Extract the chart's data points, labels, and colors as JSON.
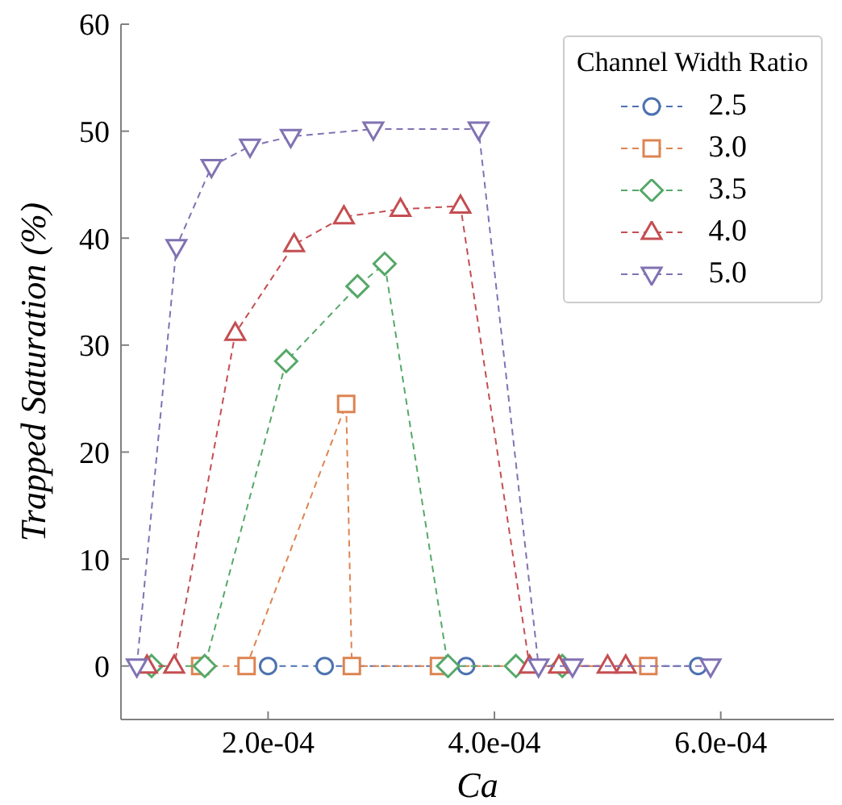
{
  "chart_data": {
    "type": "line",
    "xlabel": "Ca",
    "ylabel": "Trapped Saturation (%)",
    "legend_title": "Channel Width Ratio",
    "legend": "top right",
    "grid": false,
    "line_style": "dashed",
    "xlim": [
      7e-05,
      0.0007
    ],
    "xticks": [
      {
        "value": 0.0002,
        "label": "2.0e-04"
      },
      {
        "value": 0.0004,
        "label": "4.0e-04"
      },
      {
        "value": 0.0006,
        "label": "6.0e-04"
      }
    ],
    "ylim": [
      -5,
      60
    ],
    "yticks": [
      0,
      10,
      20,
      30,
      40,
      50,
      60
    ],
    "series": [
      {
        "name": "2.5",
        "color": "#4c72b0",
        "marker": "circle",
        "x": [
          0.0002,
          0.00025,
          0.000375,
          0.00058
        ],
        "values": [
          0,
          0,
          0,
          0
        ]
      },
      {
        "name": "3.0",
        "color": "#dd8452",
        "marker": "square",
        "x": [
          0.00014,
          0.000181,
          0.000269,
          0.000274,
          0.000351,
          0.000536
        ],
        "values": [
          0,
          0,
          24.5,
          0,
          0,
          0
        ]
      },
      {
        "name": "3.5",
        "color": "#55a868",
        "marker": "diamond",
        "x": [
          9.7e-05,
          0.000144,
          0.000216,
          0.000279,
          0.000303,
          0.000359,
          0.000419,
          0.00046
        ],
        "values": [
          0,
          0,
          28.5,
          35.5,
          37.6,
          0,
          0,
          0
        ]
      },
      {
        "name": "4.0",
        "color": "#c44e52",
        "marker": "triangle",
        "x": [
          9.3e-05,
          0.000117,
          0.000171,
          0.000223,
          0.000267,
          0.000317,
          0.00037,
          0.000431,
          0.000457,
          0.0005,
          0.000516
        ],
        "values": [
          0,
          0,
          31.1,
          39.4,
          42.0,
          42.7,
          43.0,
          0,
          0,
          0,
          0
        ]
      },
      {
        "name": "5.0",
        "color": "#8172b3",
        "marker": "triangle-down",
        "x": [
          8.4e-05,
          0.000119,
          0.00015,
          0.000184,
          0.00022,
          0.000293,
          0.000386,
          0.000439,
          0.000469,
          0.000591
        ],
        "values": [
          0,
          39.2,
          46.7,
          48.6,
          49.5,
          50.2,
          50.2,
          0,
          0,
          0
        ]
      }
    ]
  }
}
